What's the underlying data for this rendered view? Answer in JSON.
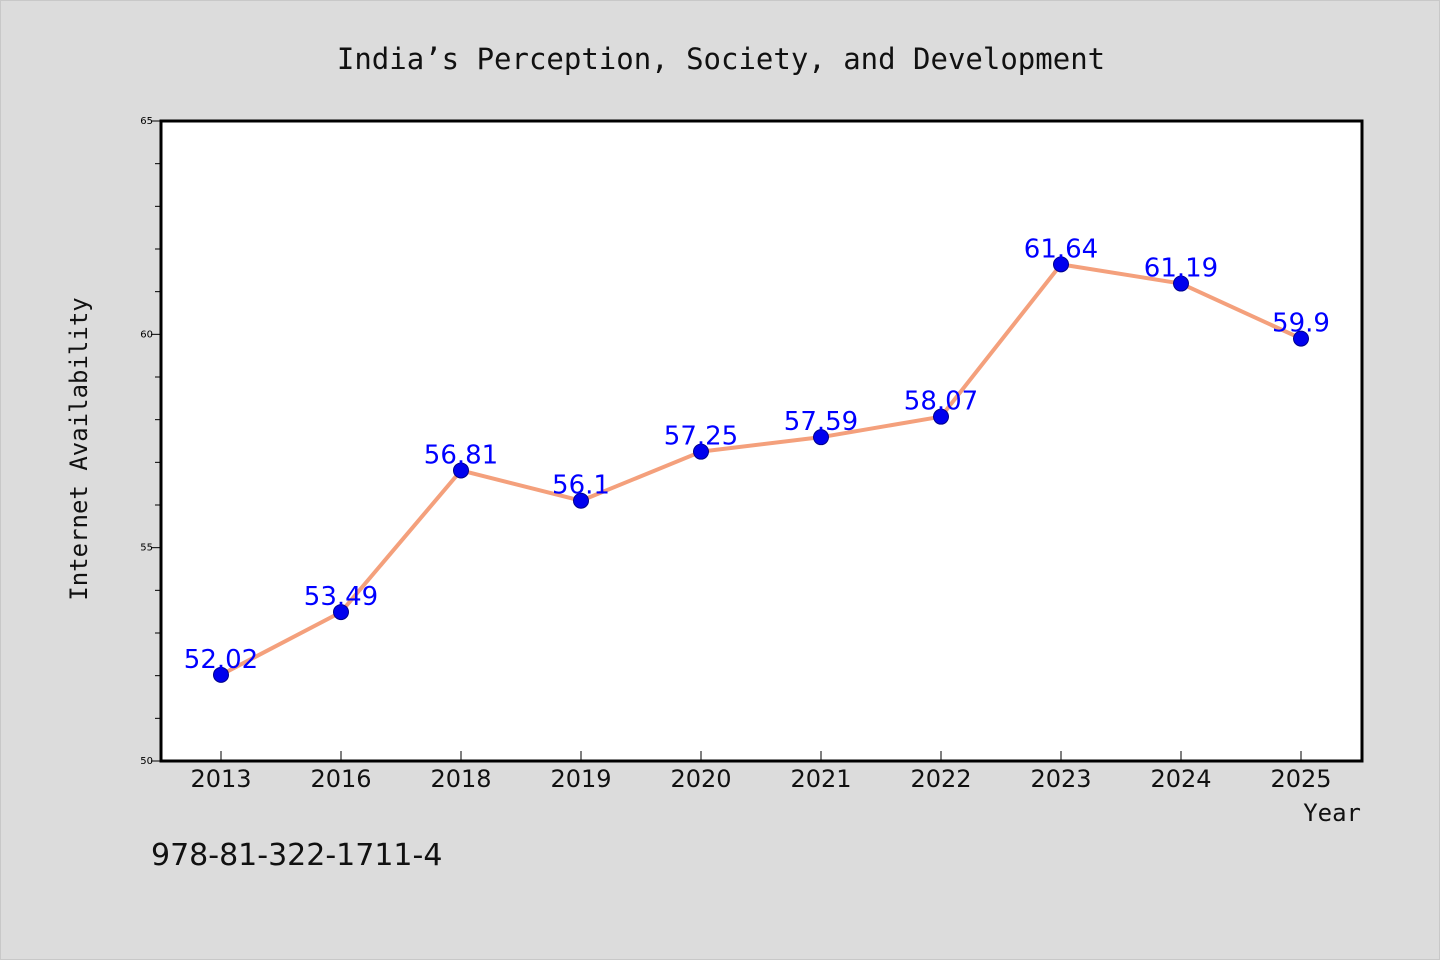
{
  "chart_data": {
    "type": "line",
    "title": "India’s Perception, Society, and Development",
    "xlabel": "Year",
    "ylabel": "Internet Availability",
    "categories": [
      "2013",
      "2016",
      "2018",
      "2019",
      "2020",
      "2021",
      "2022",
      "2023",
      "2024",
      "2025"
    ],
    "series": [
      {
        "values": [
          52.02,
          53.49,
          56.81,
          56.1,
          57.25,
          57.59,
          58.07,
          61.64,
          61.19,
          59.9
        ],
        "data_labels": [
          "52.02",
          "53.49",
          "56.81",
          "56.1",
          "57.25",
          "57.59",
          "58.07",
          "61.64",
          "61.19",
          "59.9"
        ],
        "line_color": "#f4a07c",
        "marker_color": "#0000ee"
      }
    ],
    "ylim": [
      50,
      65
    ],
    "y_major_ticks": [
      50,
      55,
      60,
      65
    ],
    "y_minor_step": 1,
    "label_color": "#0000ff",
    "grid": false,
    "legend": "none"
  },
  "footer": {
    "isbn": "978-81-322-1711-4"
  }
}
